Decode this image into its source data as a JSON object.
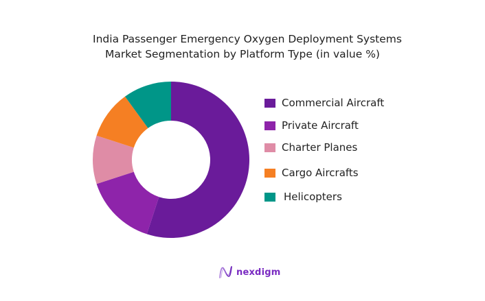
{
  "title": {
    "line1": "India Passenger Emergency Oxygen Deployment Systems",
    "line2": "Market Segmentation by Platform Type (in value %)"
  },
  "chart_data": {
    "type": "pie",
    "subtype": "donut",
    "title": "India Passenger Emergency Oxygen Deployment Systems Market Segmentation by Platform Type (in value %)",
    "categories": [
      "Commercial Aircraft",
      "Private Aircraft",
      "Charter Planes",
      "Cargo Aircrafts",
      "Helicopters"
    ],
    "values": [
      55,
      15,
      10,
      10,
      10
    ],
    "colors": [
      "#6a1b9a",
      "#8e24aa",
      "#df8ca6",
      "#f57f23",
      "#009688"
    ],
    "legend_position": "right",
    "unit": "%"
  },
  "legend": {
    "items": [
      {
        "label": "Commercial Aircraft",
        "color": "#6a1b9a"
      },
      {
        "label": "Private Aircraft",
        "color": "#8e24aa"
      },
      {
        "label": "Charter Planes",
        "color": "#df8ca6"
      },
      {
        "label": "Cargo Aircrafts",
        "color": "#f57f23"
      },
      {
        "label": "Helicopters",
        "color": "#009688"
      }
    ]
  },
  "brand": {
    "name": "nexdigm",
    "icon": "nexdigm-wave-logo-icon",
    "color": "#7a2bc2"
  }
}
